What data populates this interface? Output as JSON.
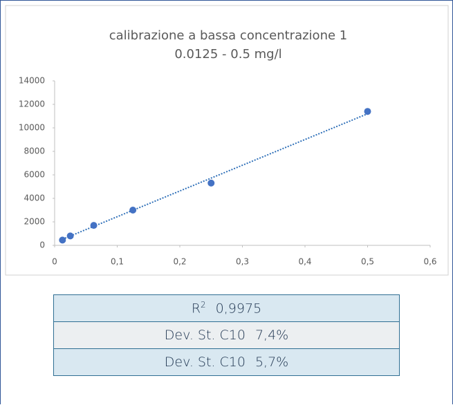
{
  "chart_data": {
    "type": "scatter",
    "title": "calibrazione a bassa concentrazione 1",
    "subtitle": "0.0125 - 0.5 mg/l",
    "x": [
      0.0125,
      0.025,
      0.0625,
      0.125,
      0.25,
      0.5
    ],
    "values": [
      450,
      800,
      1700,
      3000,
      5300,
      11400
    ],
    "color": "#4472c4",
    "trendline": {
      "x": [
        0.0125,
        0.5
      ],
      "values": [
        520,
        11200
      ],
      "color": "#2e6fb8"
    },
    "xlim": [
      0,
      0.6
    ],
    "xticks": [
      0,
      {
        "value": 0.1,
        "label": "0,1"
      },
      {
        "value": 0.2,
        "label": "0,2"
      },
      {
        "value": 0.3,
        "label": "0,3"
      },
      {
        "value": 0.4,
        "label": "0,4"
      },
      {
        "value": 0.5,
        "label": "0,5"
      },
      {
        "value": 0.6,
        "label": "0,6"
      }
    ],
    "ylim": [
      0,
      14000
    ],
    "yticks": [
      0,
      2000,
      4000,
      6000,
      8000,
      10000,
      12000,
      14000
    ],
    "grid": false
  },
  "table": {
    "rows": [
      {
        "label": "R",
        "sup": "2",
        "value": "0,9975"
      },
      {
        "label": "Dev. St. C10",
        "value": "7,4%"
      },
      {
        "label": "Dev. St. C10",
        "value": "5,7%"
      }
    ]
  }
}
